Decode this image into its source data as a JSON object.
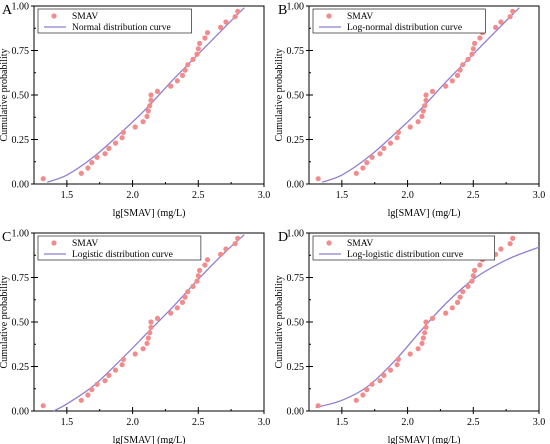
{
  "chart_data": [
    {
      "panel": "A",
      "type": "scatter",
      "xlabel": "lg[SMAV] (mg/L)",
      "ylabel": "Cumulative probability",
      "xlim": [
        1.25,
        3.0
      ],
      "ylim": [
        0.0,
        1.0
      ],
      "xticks": [
        "1.5",
        "2.0",
        "2.5",
        "3.0"
      ],
      "yticks": [
        "0.00",
        "0.25",
        "0.50",
        "0.75",
        "1.00"
      ],
      "legend_position": "top-left",
      "series": [
        {
          "name": "SMAV",
          "kind": "points",
          "color": "#f28b8b",
          "x": [
            1.32,
            1.61,
            1.66,
            1.69,
            1.73,
            1.79,
            1.82,
            1.87,
            1.92,
            1.93,
            2.02,
            2.08,
            2.11,
            2.12,
            2.13,
            2.14,
            2.14,
            2.19,
            2.29,
            2.34,
            2.38,
            2.4,
            2.42,
            2.46,
            2.49,
            2.5,
            2.51,
            2.55,
            2.57,
            2.67,
            2.71,
            2.78,
            2.8
          ],
          "y": [
            0.03,
            0.06,
            0.09,
            0.12,
            0.15,
            0.17,
            0.2,
            0.23,
            0.26,
            0.29,
            0.32,
            0.35,
            0.38,
            0.41,
            0.44,
            0.47,
            0.5,
            0.52,
            0.55,
            0.58,
            0.61,
            0.64,
            0.67,
            0.7,
            0.73,
            0.76,
            0.79,
            0.82,
            0.85,
            0.88,
            0.91,
            0.94,
            0.97
          ]
        },
        {
          "name": "Normal distribution curve",
          "kind": "line",
          "color": "#8f7fd0",
          "x": [
            1.35,
            1.5,
            1.7,
            1.9,
            2.1,
            2.3,
            2.5,
            2.7,
            2.85
          ],
          "y": [
            0.01,
            0.05,
            0.15,
            0.28,
            0.42,
            0.58,
            0.73,
            0.88,
            0.99
          ]
        }
      ]
    },
    {
      "panel": "B",
      "type": "scatter",
      "xlabel": "lg[SMAV] (mg/L)",
      "ylabel": "Cumulative probability",
      "xlim": [
        1.25,
        3.0
      ],
      "ylim": [
        0.0,
        1.0
      ],
      "xticks": [
        "1.5",
        "2.0",
        "2.5",
        "3.0"
      ],
      "yticks": [
        "0.00",
        "0.25",
        "0.50",
        "0.75",
        "1.00"
      ],
      "legend_position": "top-left",
      "series": [
        {
          "name": "SMAV",
          "kind": "points",
          "color": "#f28b8b",
          "x": [
            1.32,
            1.61,
            1.66,
            1.69,
            1.73,
            1.79,
            1.82,
            1.87,
            1.92,
            1.93,
            2.02,
            2.08,
            2.11,
            2.12,
            2.13,
            2.14,
            2.14,
            2.19,
            2.29,
            2.34,
            2.38,
            2.4,
            2.42,
            2.46,
            2.49,
            2.5,
            2.51,
            2.55,
            2.57,
            2.67,
            2.71,
            2.78,
            2.8
          ],
          "y": [
            0.03,
            0.06,
            0.09,
            0.12,
            0.15,
            0.17,
            0.2,
            0.23,
            0.26,
            0.29,
            0.32,
            0.35,
            0.38,
            0.41,
            0.44,
            0.47,
            0.5,
            0.52,
            0.55,
            0.58,
            0.61,
            0.64,
            0.67,
            0.7,
            0.73,
            0.76,
            0.79,
            0.82,
            0.85,
            0.88,
            0.91,
            0.94,
            0.97
          ]
        },
        {
          "name": "Log-normal distribution curve",
          "kind": "line",
          "color": "#8f7fd0",
          "x": [
            1.35,
            1.5,
            1.7,
            1.9,
            2.1,
            2.3,
            2.5,
            2.7,
            2.85
          ],
          "y": [
            0.01,
            0.05,
            0.15,
            0.28,
            0.42,
            0.58,
            0.73,
            0.88,
            0.99
          ]
        }
      ]
    },
    {
      "panel": "C",
      "type": "scatter",
      "xlabel": "lg[SMAV] (mg/L)",
      "ylabel": "Cumulative probability",
      "xlim": [
        1.25,
        3.0
      ],
      "ylim": [
        0.0,
        1.0
      ],
      "xticks": [
        "1.5",
        "2.0",
        "2.5",
        "3.0"
      ],
      "yticks": [
        "0.00",
        "0.25",
        "0.50",
        "0.75",
        "1.00"
      ],
      "legend_position": "top-left",
      "series": [
        {
          "name": "SMAV",
          "kind": "points",
          "color": "#f28b8b",
          "x": [
            1.32,
            1.61,
            1.66,
            1.69,
            1.73,
            1.79,
            1.82,
            1.87,
            1.92,
            1.93,
            2.02,
            2.08,
            2.11,
            2.12,
            2.13,
            2.14,
            2.14,
            2.19,
            2.29,
            2.34,
            2.38,
            2.4,
            2.42,
            2.46,
            2.49,
            2.5,
            2.51,
            2.55,
            2.57,
            2.67,
            2.71,
            2.78,
            2.8
          ],
          "y": [
            0.03,
            0.06,
            0.09,
            0.12,
            0.15,
            0.17,
            0.2,
            0.23,
            0.26,
            0.29,
            0.32,
            0.35,
            0.38,
            0.41,
            0.44,
            0.47,
            0.5,
            0.52,
            0.55,
            0.58,
            0.61,
            0.64,
            0.67,
            0.7,
            0.73,
            0.76,
            0.79,
            0.82,
            0.85,
            0.88,
            0.91,
            0.94,
            0.97
          ]
        },
        {
          "name": "Logistic distribution curve",
          "kind": "line",
          "color": "#8f7fd0",
          "x": [
            1.4,
            1.5,
            1.7,
            1.9,
            2.1,
            2.3,
            2.5,
            2.7,
            2.85
          ],
          "y": [
            0.0,
            0.04,
            0.14,
            0.28,
            0.43,
            0.58,
            0.74,
            0.89,
            0.99
          ]
        }
      ]
    },
    {
      "panel": "D",
      "type": "scatter",
      "xlabel": "lg[SMAV] (mg/L)",
      "ylabel": "Cumulative probability",
      "xlim": [
        1.25,
        3.0
      ],
      "ylim": [
        0.0,
        1.0
      ],
      "xticks": [
        "1.5",
        "2.0",
        "2.5",
        "3.0"
      ],
      "yticks": [
        "0.00",
        "0.25",
        "0.50",
        "0.75",
        "1.00"
      ],
      "legend_position": "top-left",
      "series": [
        {
          "name": "SMAV",
          "kind": "points",
          "color": "#f28b8b",
          "x": [
            1.32,
            1.61,
            1.66,
            1.69,
            1.73,
            1.79,
            1.82,
            1.87,
            1.92,
            1.93,
            2.02,
            2.08,
            2.11,
            2.12,
            2.13,
            2.14,
            2.14,
            2.19,
            2.29,
            2.34,
            2.38,
            2.4,
            2.42,
            2.46,
            2.49,
            2.5,
            2.51,
            2.55,
            2.57,
            2.67,
            2.71,
            2.78,
            2.8
          ],
          "y": [
            0.03,
            0.06,
            0.09,
            0.12,
            0.15,
            0.17,
            0.2,
            0.23,
            0.26,
            0.29,
            0.32,
            0.35,
            0.38,
            0.41,
            0.44,
            0.47,
            0.5,
            0.52,
            0.55,
            0.58,
            0.61,
            0.64,
            0.67,
            0.7,
            0.73,
            0.76,
            0.79,
            0.82,
            0.85,
            0.88,
            0.91,
            0.94,
            0.97
          ]
        },
        {
          "name": "Log-logistic distribution curve",
          "kind": "line",
          "color": "#8f7fd0",
          "x": [
            1.3,
            1.5,
            1.7,
            1.9,
            2.1,
            2.3,
            2.5,
            2.7,
            2.85,
            3.0
          ],
          "y": [
            0.02,
            0.06,
            0.14,
            0.28,
            0.45,
            0.61,
            0.74,
            0.83,
            0.88,
            0.92
          ]
        }
      ]
    }
  ]
}
